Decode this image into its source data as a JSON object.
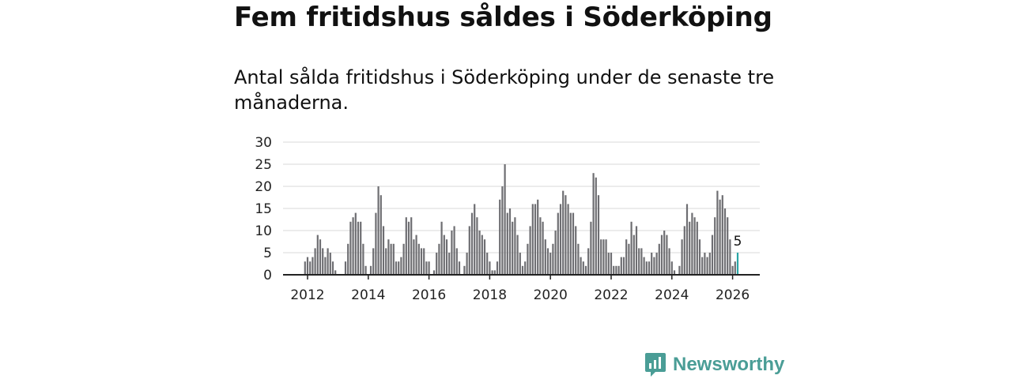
{
  "title": "Fem fritidshus såldes i Söderköping",
  "subtitle": "Antal sålda fritidshus i Söderköping under de senaste tre månaderna.",
  "brand": {
    "name": "Newsworthy",
    "logo_icon": "bar-chart-icon"
  },
  "colors": {
    "bar": "#6e6e72",
    "highlight": "#2aa6a6",
    "grid": "#d9d9d9",
    "axis": "#222222",
    "brand": "#4a9d96"
  },
  "chart_data": {
    "type": "bar",
    "title": "Fem fritidshus såldes i Söderköping",
    "xlabel": "",
    "ylabel": "",
    "ylim": [
      0,
      30
    ],
    "yticks": [
      0,
      5,
      10,
      15,
      20,
      25,
      30
    ],
    "xticks": [
      {
        "label": "2012",
        "year": 2012
      },
      {
        "label": "2014",
        "year": 2014
      },
      {
        "label": "2016",
        "year": 2016
      },
      {
        "label": "2018",
        "year": 2018
      },
      {
        "label": "2020",
        "year": 2020
      },
      {
        "label": "2022",
        "year": 2022
      },
      {
        "label": "2024",
        "year": 2024
      },
      {
        "label": "2026",
        "year": 2026
      }
    ],
    "start": "2011-12",
    "frequency": "monthly",
    "series": [
      {
        "name": "Antal sålda fritidshus",
        "values": [
          3,
          4,
          3,
          4,
          6,
          9,
          8,
          6,
          4,
          6,
          5,
          3,
          1,
          0,
          0,
          0,
          3,
          7,
          12,
          13,
          14,
          12,
          12,
          7,
          2,
          0,
          2,
          6,
          14,
          20,
          18,
          11,
          6,
          8,
          7,
          7,
          3,
          3,
          4,
          7,
          13,
          12,
          13,
          8,
          9,
          7,
          6,
          6,
          3,
          3,
          0,
          1,
          5,
          7,
          12,
          9,
          8,
          5,
          10,
          11,
          6,
          3,
          0,
          2,
          5,
          11,
          14,
          16,
          13,
          10,
          9,
          8,
          5,
          3,
          1,
          1,
          3,
          17,
          20,
          25,
          14,
          15,
          12,
          13,
          9,
          5,
          2,
          3,
          7,
          11,
          16,
          16,
          17,
          13,
          12,
          8,
          6,
          5,
          7,
          10,
          14,
          16,
          19,
          18,
          16,
          14,
          14,
          11,
          7,
          4,
          3,
          2,
          6,
          12,
          23,
          22,
          18,
          8,
          8,
          8,
          5,
          5,
          2,
          2,
          2,
          4,
          4,
          8,
          7,
          12,
          9,
          11,
          6,
          6,
          4,
          3,
          3,
          5,
          4,
          5,
          7,
          9,
          10,
          9,
          6,
          3,
          1,
          0,
          2,
          8,
          11,
          16,
          12,
          14,
          13,
          12,
          8,
          4,
          5,
          4,
          5,
          9,
          13,
          19,
          17,
          18,
          15,
          13,
          8,
          2,
          3,
          5
        ],
        "latest_value": 5
      }
    ]
  }
}
